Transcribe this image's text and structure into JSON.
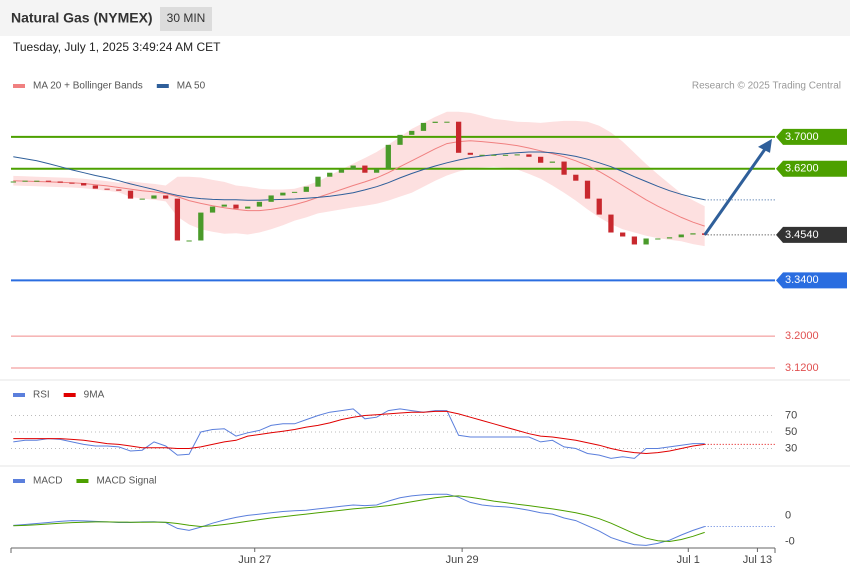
{
  "header": {
    "title": "Natural Gas (NYMEX)",
    "interval": "30 MIN",
    "date": "Tuesday, July 1, 2025 3:49:24 AM CET",
    "credit": "Research © 2025 Trading Central"
  },
  "chart_data": [
    {
      "type": "candlestick",
      "xlim": [
        -0.2,
        65
      ],
      "ylim": [
        3.1,
        3.8
      ],
      "up_color": "#4a9a2a",
      "down_color": "#c8282e",
      "open": [
        3.586,
        3.588,
        3.59,
        3.59,
        3.588,
        3.585,
        3.584,
        3.578,
        3.57,
        3.568,
        3.565,
        3.545,
        3.545,
        3.553,
        3.545,
        3.44,
        3.44,
        3.51,
        3.525,
        3.53,
        3.52,
        3.525,
        3.537,
        3.553,
        3.56,
        3.562,
        3.575,
        3.6,
        3.61,
        3.618,
        3.628,
        3.61,
        3.62,
        3.68,
        3.705,
        3.715,
        3.735,
        3.738,
        3.738,
        3.66,
        3.655,
        3.655,
        3.655,
        3.655,
        3.656,
        3.65,
        3.635,
        3.638,
        3.605,
        3.59,
        3.545,
        3.505,
        3.46,
        3.45,
        3.43,
        3.445,
        3.445,
        3.448,
        3.455,
        3.458
      ],
      "close": [
        3.588,
        3.59,
        3.59,
        3.588,
        3.585,
        3.584,
        3.578,
        3.57,
        3.568,
        3.565,
        3.545,
        3.545,
        3.553,
        3.545,
        3.44,
        3.44,
        3.51,
        3.525,
        3.53,
        3.52,
        3.525,
        3.537,
        3.553,
        3.56,
        3.562,
        3.575,
        3.6,
        3.61,
        3.618,
        3.628,
        3.61,
        3.62,
        3.68,
        3.705,
        3.715,
        3.735,
        3.738,
        3.738,
        3.66,
        3.655,
        3.655,
        3.655,
        3.655,
        3.656,
        3.65,
        3.635,
        3.638,
        3.605,
        3.59,
        3.545,
        3.505,
        3.46,
        3.45,
        3.43,
        3.445,
        3.445,
        3.448,
        3.455,
        3.458,
        3.454
      ],
      "series": [
        {
          "name": "MA 20 + Bollinger Bands",
          "color": "#f08080",
          "band_color": "#fde0e0",
          "values": [
            3.59,
            3.589,
            3.588,
            3.587,
            3.586,
            3.585,
            3.583,
            3.58,
            3.577,
            3.573,
            3.569,
            3.565,
            3.562,
            3.558,
            3.55,
            3.54,
            3.533,
            3.527,
            3.522,
            3.518,
            3.515,
            3.515,
            3.518,
            3.523,
            3.53,
            3.538,
            3.548,
            3.558,
            3.568,
            3.578,
            3.587,
            3.597,
            3.61,
            3.625,
            3.64,
            3.655,
            3.67,
            3.683,
            3.688,
            3.69,
            3.688,
            3.685,
            3.682,
            3.678,
            3.672,
            3.665,
            3.658,
            3.65,
            3.64,
            3.628,
            3.613,
            3.596,
            3.578,
            3.56,
            3.542,
            3.526,
            3.512,
            3.498,
            3.486,
            3.476
          ],
          "upper": [
            3.602,
            3.601,
            3.6,
            3.599,
            3.598,
            3.597,
            3.595,
            3.592,
            3.589,
            3.585,
            3.589,
            3.585,
            3.582,
            3.578,
            3.6,
            3.6,
            3.598,
            3.592,
            3.587,
            3.578,
            3.575,
            3.57,
            3.568,
            3.568,
            3.57,
            3.578,
            3.588,
            3.603,
            3.618,
            3.633,
            3.647,
            3.662,
            3.68,
            3.7,
            3.72,
            3.735,
            3.75,
            3.763,
            3.763,
            3.76,
            3.753,
            3.745,
            3.742,
            3.738,
            3.737,
            3.735,
            3.738,
            3.74,
            3.74,
            3.738,
            3.728,
            3.711,
            3.688,
            3.66,
            3.632,
            3.606,
            3.582,
            3.558,
            3.541,
            3.526
          ],
          "lower": [
            3.578,
            3.577,
            3.576,
            3.575,
            3.574,
            3.573,
            3.571,
            3.568,
            3.565,
            3.561,
            3.549,
            3.545,
            3.542,
            3.538,
            3.5,
            3.48,
            3.468,
            3.462,
            3.457,
            3.458,
            3.455,
            3.46,
            3.468,
            3.478,
            3.49,
            3.498,
            3.508,
            3.513,
            3.518,
            3.523,
            3.527,
            3.532,
            3.54,
            3.55,
            3.56,
            3.575,
            3.59,
            3.603,
            3.613,
            3.62,
            3.623,
            3.625,
            3.622,
            3.618,
            3.607,
            3.595,
            3.578,
            3.56,
            3.54,
            3.518,
            3.498,
            3.481,
            3.468,
            3.46,
            3.452,
            3.446,
            3.442,
            3.438,
            3.431,
            3.426
          ]
        },
        {
          "name": "MA 50",
          "color": "#2f5f9a",
          "extend": true,
          "values": [
            3.65,
            3.645,
            3.64,
            3.633,
            3.625,
            3.617,
            3.61,
            3.603,
            3.597,
            3.59,
            3.582,
            3.575,
            3.568,
            3.56,
            3.553,
            3.548,
            3.545,
            3.543,
            3.542,
            3.542,
            3.541,
            3.541,
            3.542,
            3.543,
            3.544,
            3.546,
            3.548,
            3.551,
            3.555,
            3.56,
            3.567,
            3.575,
            3.585,
            3.597,
            3.608,
            3.618,
            3.627,
            3.635,
            3.642,
            3.648,
            3.652,
            3.655,
            3.658,
            3.66,
            3.662,
            3.662,
            3.66,
            3.656,
            3.651,
            3.644,
            3.635,
            3.625,
            3.613,
            3.6,
            3.588,
            3.576,
            3.565,
            3.556,
            3.548,
            3.542
          ]
        }
      ],
      "levels": [
        {
          "value": 3.7,
          "label": "3.7000",
          "color": "#4ca000",
          "boxed": true
        },
        {
          "value": 3.62,
          "label": "3.6200",
          "color": "#4ca000",
          "boxed": true
        },
        {
          "value": 3.454,
          "label": "3.4540",
          "color": "#333333",
          "boxed": true
        },
        {
          "value": 3.34,
          "label": "3.3400",
          "color": "#2a6de0",
          "boxed": true
        },
        {
          "value": 3.2,
          "label": "3.2000",
          "color": "#f08a8a",
          "boxed": false
        },
        {
          "value": 3.12,
          "label": "3.1200",
          "color": "#f08a8a",
          "boxed": false
        }
      ]
    },
    {
      "type": "line",
      "xlim": [
        -0.2,
        65
      ],
      "ylim": [
        10,
        107
      ],
      "yticks": [
        70,
        50,
        30
      ],
      "grid": true,
      "series": [
        {
          "name": "RSI",
          "color": "#5b7fdc",
          "values": [
            38,
            40,
            40,
            42,
            41,
            38,
            35,
            33,
            33,
            32,
            27,
            28,
            38,
            33,
            22,
            23,
            50,
            53,
            54,
            45,
            49,
            52,
            58,
            60,
            60,
            65,
            70,
            74,
            76,
            78,
            66,
            68,
            76,
            78,
            76,
            74,
            76,
            76,
            46,
            44,
            44,
            44,
            44,
            44,
            44,
            38,
            40,
            32,
            30,
            24,
            22,
            18,
            20,
            18,
            30,
            30,
            32,
            34,
            36,
            36
          ]
        },
        {
          "name": "9MA",
          "color": "#e00000",
          "extend": true,
          "values": [
            42,
            42,
            42,
            42,
            42,
            41,
            40,
            38,
            36,
            35,
            33,
            31,
            31,
            31,
            30,
            30,
            32,
            35,
            38,
            40,
            45,
            47,
            49,
            51,
            53,
            56,
            58,
            61,
            65,
            68,
            70,
            71,
            72,
            73,
            74,
            74,
            75,
            75,
            72,
            68,
            64,
            60,
            56,
            52,
            48,
            45,
            44,
            42,
            40,
            37,
            34,
            30,
            27,
            25,
            24,
            25,
            27,
            30,
            33,
            35
          ]
        }
      ]
    },
    {
      "type": "line",
      "xlim": [
        -0.2,
        65
      ],
      "ylim": [
        -0.025,
        0.031
      ],
      "yticks": [
        0,
        {
          "value": -0.02,
          "label": "-0"
        }
      ],
      "xticks": [
        {
          "value": 20.6,
          "label": "Jun 27"
        },
        {
          "value": 38.3,
          "label": "Jun 29"
        },
        {
          "value": 57.6,
          "label": "Jul 1"
        },
        {
          "value": 63.5,
          "label": "Jul 13"
        }
      ],
      "series": [
        {
          "name": "MACD",
          "color": "#5b7fdc",
          "extend": true,
          "values": [
            -0.0077,
            -0.007,
            -0.0062,
            -0.0054,
            -0.0046,
            -0.004,
            -0.0042,
            -0.0046,
            -0.005,
            -0.0054,
            -0.0054,
            -0.005,
            -0.0048,
            -0.0054,
            -0.01,
            -0.0115,
            -0.009,
            -0.006,
            -0.0035,
            -0.0015,
            0,
            0.001,
            0.002,
            0.003,
            0.0035,
            0.004,
            0.005,
            0.006,
            0.007,
            0.008,
            0.0075,
            0.008,
            0.011,
            0.0135,
            0.015,
            0.0158,
            0.0162,
            0.0162,
            0.014,
            0.01,
            0.008,
            0.007,
            0.0065,
            0.0055,
            0.004,
            0.002,
            0.001,
            -0.002,
            -0.004,
            -0.008,
            -0.012,
            -0.017,
            -0.02,
            -0.0225,
            -0.023,
            -0.0215,
            -0.019,
            -0.015,
            -0.0115,
            -0.0085
          ]
        },
        {
          "name": "MACD Signal",
          "color": "#4ca000",
          "values": [
            -0.008,
            -0.0077,
            -0.0072,
            -0.0066,
            -0.006,
            -0.0055,
            -0.0052,
            -0.005,
            -0.005,
            -0.0051,
            -0.0052,
            -0.0052,
            -0.0051,
            -0.0052,
            -0.0062,
            -0.0075,
            -0.0085,
            -0.008,
            -0.007,
            -0.0058,
            -0.0045,
            -0.0032,
            -0.002,
            -0.001,
            0,
            0.001,
            0.002,
            0.003,
            0.004,
            0.005,
            0.0058,
            0.0065,
            0.0075,
            0.009,
            0.0105,
            0.012,
            0.0135,
            0.0145,
            0.015,
            0.014,
            0.0125,
            0.011,
            0.0098,
            0.0085,
            0.0075,
            0.0062,
            0.005,
            0.0035,
            0.002,
            0,
            -0.0025,
            -0.006,
            -0.01,
            -0.014,
            -0.0175,
            -0.0195,
            -0.02,
            -0.0185,
            -0.016,
            -0.013
          ]
        }
      ]
    }
  ]
}
